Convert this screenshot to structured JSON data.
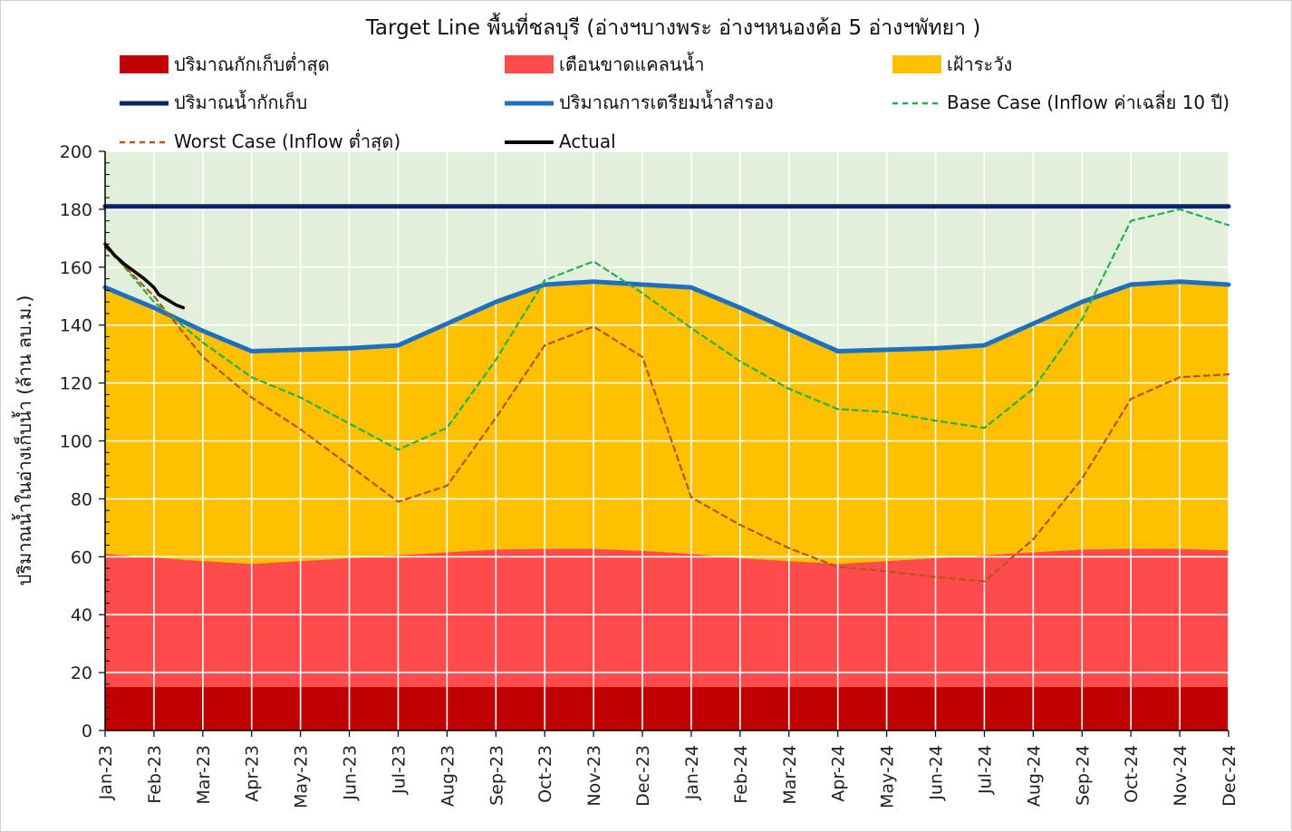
{
  "chart_data": {
    "type": "area",
    "title": "Target Line พื้นที่ชลบุรี (อ่างฯบางพระ อ่างฯหนองค้อ 5 อ่างฯพัทยา )",
    "ylabel": "ปริมาณน้ำในอ่างเก็บน้ำ (ล้าน ลบ.ม.)",
    "xlabel": "",
    "ylim": [
      0,
      200
    ],
    "y_ticks": [
      0,
      20,
      40,
      60,
      80,
      100,
      120,
      140,
      160,
      180,
      200
    ],
    "grid": true,
    "legend_position": "top",
    "categories": [
      "Jan-23",
      "Feb-23",
      "Mar-23",
      "Apr-23",
      "May-23",
      "Jun-23",
      "Jul-23",
      "Aug-23",
      "Sep-23",
      "Oct-23",
      "Nov-23",
      "Dec-23",
      "Jan-24",
      "Feb-24",
      "Mar-24",
      "Apr-24",
      "May-24",
      "Jun-24",
      "Jul-24",
      "Aug-24",
      "Sep-24",
      "Oct-24",
      "Nov-24",
      "Dec-24"
    ],
    "series": [
      {
        "name": "ปริมาณกักเก็บต่ำสุด",
        "kind": "area",
        "color": "#c00000",
        "values": [
          15,
          15,
          15,
          15,
          15,
          15,
          15,
          15,
          15,
          15,
          15,
          15,
          15,
          15,
          15,
          15,
          15,
          15,
          15,
          15,
          15,
          15,
          15,
          15
        ]
      },
      {
        "name": "เตือนขาดแคลนน้ำ",
        "kind": "area",
        "color": "#ff4b4b",
        "values": [
          61,
          59.7,
          58.5,
          57.5,
          58.5,
          59.5,
          60.5,
          61.5,
          62.5,
          62.7,
          62.7,
          62,
          61,
          59.5,
          58.5,
          57.5,
          58.5,
          59.5,
          60.5,
          61.5,
          62.5,
          62.7,
          62.7,
          62.2
        ]
      },
      {
        "name": "เฝ้าระวัง",
        "kind": "area",
        "color": "#ffc000",
        "values": [
          153,
          146,
          138,
          131,
          131.5,
          132,
          133,
          140.5,
          148,
          154,
          155,
          154,
          153,
          146,
          138.5,
          131,
          131.5,
          132,
          133,
          140.5,
          148,
          154,
          155,
          154
        ]
      },
      {
        "name": "ปริมาณน้ำกักเก็บ",
        "kind": "line",
        "color": "#0a2466",
        "dash": "",
        "values": [
          181,
          181,
          181,
          181,
          181,
          181,
          181,
          181,
          181,
          181,
          181,
          181,
          181,
          181,
          181,
          181,
          181,
          181,
          181,
          181,
          181,
          181,
          181,
          181
        ]
      },
      {
        "name": "ปริมาณการเตรียมน้ำสำรอง",
        "kind": "line",
        "color": "#1f6fc1",
        "dash": "",
        "values": [
          153,
          146,
          138,
          131,
          131.5,
          132,
          133,
          140.5,
          148,
          154,
          155,
          154,
          153,
          146,
          138.5,
          131,
          131.5,
          132,
          133,
          140.5,
          148,
          154,
          155,
          154
        ]
      },
      {
        "name": "Base Case (Inflow ค่าเฉลี่ย 10 ปี)",
        "kind": "line",
        "color": "#22b14c",
        "dash": "6,5",
        "values": [
          168,
          148,
          134,
          122,
          115,
          106,
          97,
          104.5,
          128,
          155.5,
          162,
          151,
          139,
          127.5,
          118,
          111,
          110,
          107,
          104.5,
          118,
          142,
          176,
          180,
          174.5
        ]
      },
      {
        "name": "Worst Case (Inflow ต่ำสุด)",
        "kind": "line",
        "color": "#b5541c",
        "dash": "6,5",
        "values": [
          167,
          150,
          129,
          115,
          104,
          91.5,
          79,
          84.5,
          108,
          133,
          139.5,
          129,
          80.5,
          71,
          63,
          56.5,
          55,
          53,
          51.5,
          66,
          87,
          114.5,
          122,
          123
        ]
      },
      {
        "name": "Actual",
        "kind": "line",
        "color": "#000000",
        "dash": "",
        "x": [
          0,
          0.2,
          0.4,
          0.6,
          0.8,
          1.0,
          1.1,
          1.3,
          1.45,
          1.6
        ],
        "values": [
          168,
          164,
          161,
          158.5,
          156,
          153,
          150.5,
          148.5,
          147,
          146
        ]
      }
    ],
    "legend_rows": [
      [
        "ปริมาณกักเก็บต่ำสุด",
        "เตือนขาดแคลนน้ำ",
        "เฝ้าระวัง"
      ],
      [
        "ปริมาณน้ำกักเก็บ",
        "ปริมาณการเตรียมน้ำสำรอง",
        "Base Case (Inflow ค่าเฉลี่ย 10 ปี)"
      ],
      [
        "Worst Case (Inflow ต่ำสุด)",
        "Actual"
      ]
    ],
    "plot_background": "#e2efda"
  }
}
